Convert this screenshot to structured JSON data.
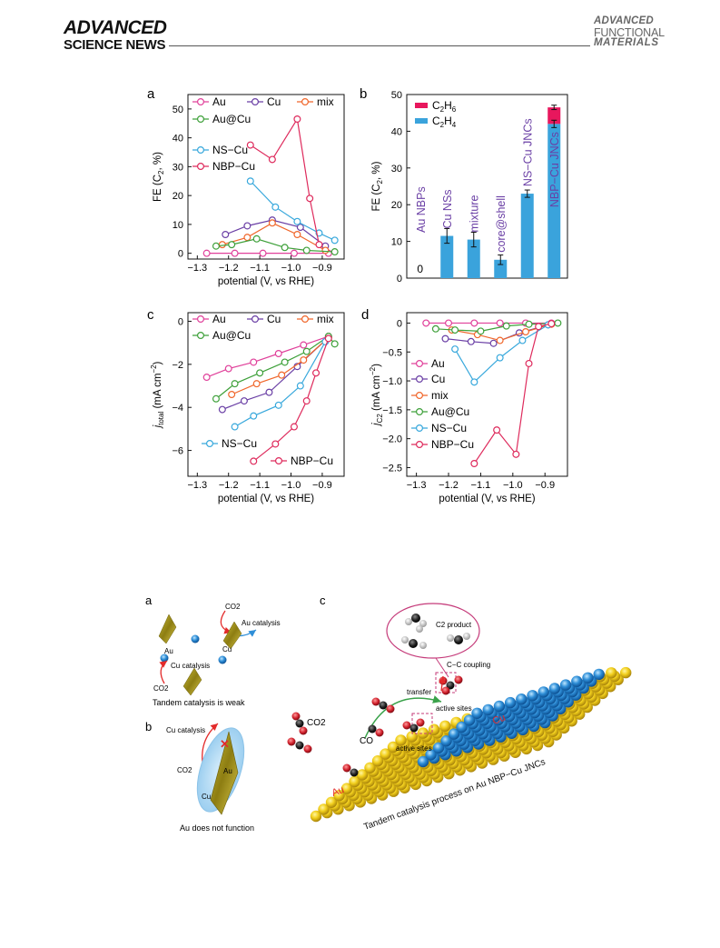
{
  "header": {
    "left_line1": "ADVANCED",
    "left_line2": "SCIENCE NEWS",
    "right_line1": "ADVANCED",
    "right_line2": "FUNCTIONAL",
    "right_line3": "MATERIALS"
  },
  "colors": {
    "Au": "#e0409a",
    "Cu": "#6a3fa5",
    "mix": "#f0662a",
    "Au@Cu": "#3ea03a",
    "NS-Cu": "#38a8dc",
    "NBP-Cu": "#de2a5c",
    "C2H6": "#e8175d",
    "C2H4": "#3aa3dc"
  },
  "figure1": {
    "panels": [
      "a",
      "b",
      "c",
      "d"
    ],
    "legend_a": [
      "Au",
      "Cu",
      "mix",
      "Au@Cu",
      "NS−Cu",
      "NBP−Cu"
    ],
    "legend_d": [
      "Au",
      "Cu",
      "mix",
      "Au@Cu",
      "NS−Cu",
      "NBP−Cu"
    ],
    "bar_labels": [
      "Au NBPs",
      "Cu NSs",
      "mixture",
      "core@shell",
      "NS−Cu JNCs",
      "NBP−Cu JNCs"
    ],
    "bar_zero": "0",
    "legend_b": [
      "C2H6",
      "C2H4"
    ]
  },
  "chart_data": [
    {
      "panel": "a",
      "type": "line",
      "xlabel": "potential (V, vs RHE)",
      "ylabel": "FE (C2, %)",
      "xlim": [
        -1.33,
        -0.83
      ],
      "ylim": [
        -2,
        55
      ],
      "xticks": [
        "-1.3",
        "-1.2",
        "-1.1",
        "-1.0",
        "-0.9"
      ],
      "yticks": [
        "0",
        "10",
        "20",
        "30",
        "40",
        "50"
      ],
      "series": [
        {
          "name": "Au",
          "x": [
            -1.27,
            -1.18,
            -1.09,
            -0.99,
            -0.88
          ],
          "y": [
            0,
            0,
            0,
            0,
            0
          ]
        },
        {
          "name": "Cu",
          "x": [
            -1.21,
            -1.14,
            -1.06,
            -0.97,
            -0.89
          ],
          "y": [
            6.5,
            9.5,
            11.5,
            9,
            2.5
          ]
        },
        {
          "name": "mix",
          "x": [
            -1.22,
            -1.14,
            -1.06,
            -0.98,
            -0.89
          ],
          "y": [
            3,
            5.5,
            10.5,
            6.5,
            1
          ]
        },
        {
          "name": "Au@Cu",
          "x": [
            -1.24,
            -1.19,
            -1.11,
            -1.02,
            -0.95,
            -0.86
          ],
          "y": [
            2.5,
            3,
            5,
            2,
            1,
            0.5
          ]
        },
        {
          "name": "NS−Cu",
          "x": [
            -1.13,
            -1.05,
            -0.98,
            -0.91,
            -0.86
          ],
          "y": [
            25,
            16,
            11,
            7,
            4.5
          ]
        },
        {
          "name": "NBP−Cu",
          "x": [
            -1.13,
            -1.06,
            -0.98,
            -0.94,
            -0.91
          ],
          "y": [
            37.5,
            32.5,
            46.5,
            19,
            3
          ]
        }
      ]
    },
    {
      "panel": "b",
      "type": "bar",
      "ylabel": "FE (C2, %)",
      "ylim": [
        0,
        50
      ],
      "yticks": [
        "0",
        "10",
        "20",
        "30",
        "40",
        "50"
      ],
      "categories": [
        "Au NBPs",
        "Cu NSs",
        "mixture",
        "core@shell",
        "NS−Cu JNCs",
        "NBP−Cu JNCs"
      ],
      "series": [
        {
          "name": "C2H4",
          "values": [
            0,
            11.5,
            10.5,
            5,
            23,
            42
          ]
        },
        {
          "name": "C2H6",
          "values": [
            0,
            0,
            0,
            0,
            0,
            4.5
          ]
        }
      ]
    },
    {
      "panel": "c",
      "type": "line",
      "xlabel": "potential (V, vs RHE)",
      "ylabel": "jtotal (mA cm-2)",
      "xlim": [
        -1.33,
        -0.83
      ],
      "ylim": [
        -7.2,
        0.4
      ],
      "xticks": [
        "-1.3",
        "-1.2",
        "-1.1",
        "-1.0",
        "-0.9"
      ],
      "yticks": [
        "0",
        "-2",
        "-4",
        "-6"
      ],
      "series": [
        {
          "name": "Au",
          "x": [
            -1.27,
            -1.2,
            -1.12,
            -1.04,
            -0.96,
            -0.88
          ],
          "y": [
            -2.6,
            -2.2,
            -1.9,
            -1.5,
            -1.1,
            -0.7
          ]
        },
        {
          "name": "Cu",
          "x": [
            -1.22,
            -1.15,
            -1.07,
            -0.98,
            -0.88
          ],
          "y": [
            -4.1,
            -3.7,
            -3.3,
            -2.1,
            -0.75
          ]
        },
        {
          "name": "mix",
          "x": [
            -1.19,
            -1.11,
            -1.03,
            -0.96,
            -0.88
          ],
          "y": [
            -3.4,
            -2.9,
            -2.5,
            -1.8,
            -0.75
          ]
        },
        {
          "name": "Au@Cu",
          "x": [
            -1.24,
            -1.18,
            -1.1,
            -1.02,
            -0.95,
            -0.88,
            -0.86
          ],
          "y": [
            -3.6,
            -2.9,
            -2.4,
            -1.9,
            -1.4,
            -0.7,
            -1.05
          ]
        },
        {
          "name": "NS−Cu",
          "x": [
            -1.18,
            -1.12,
            -1.04,
            -0.97,
            -0.89
          ],
          "y": [
            -4.9,
            -4.4,
            -3.9,
            -3,
            -0.95
          ]
        },
        {
          "name": "NBP−Cu",
          "x": [
            -1.12,
            -1.05,
            -0.99,
            -0.95,
            -0.92,
            -0.88
          ],
          "y": [
            -6.5,
            -5.7,
            -4.9,
            -3.7,
            -2.4,
            -0.8
          ]
        }
      ],
      "legend_labels": [
        "Au",
        "Cu",
        "mix",
        "Au@Cu",
        "NS−Cu",
        "NBP−Cu"
      ]
    },
    {
      "panel": "d",
      "type": "line",
      "xlabel": "potential (V, vs RHE)",
      "ylabel": "jC2 (mA cm-2)",
      "xlim": [
        -1.33,
        -0.83
      ],
      "ylim": [
        -2.65,
        0.18
      ],
      "xticks": [
        "-1.3",
        "-1.2",
        "-1.1",
        "-1.0",
        "-0.9"
      ],
      "yticks": [
        "0",
        "-0.5",
        "-1.0",
        "-1.5",
        "-2.0",
        "-2.5"
      ],
      "series": [
        {
          "name": "Au",
          "x": [
            -1.27,
            -1.2,
            -1.12,
            -1.04,
            -0.96,
            -0.88
          ],
          "y": [
            0,
            0,
            0,
            0,
            0,
            0
          ]
        },
        {
          "name": "Cu",
          "x": [
            -1.21,
            -1.13,
            -1.06,
            -0.98,
            -0.89
          ],
          "y": [
            -0.27,
            -0.32,
            -0.35,
            -0.17,
            -0.03
          ]
        },
        {
          "name": "mix",
          "x": [
            -1.19,
            -1.11,
            -1.04,
            -0.96,
            -0.88
          ],
          "y": [
            -0.12,
            -0.2,
            -0.3,
            -0.15,
            -0.02
          ]
        },
        {
          "name": "Au@Cu",
          "x": [
            -1.24,
            -1.18,
            -1.1,
            -1.02,
            -0.95,
            -0.86
          ],
          "y": [
            -0.1,
            -0.12,
            -0.14,
            -0.05,
            -0.02,
            0
          ]
        },
        {
          "name": "NS−Cu",
          "x": [
            -1.18,
            -1.12,
            -1.04,
            -0.97,
            -0.89
          ],
          "y": [
            -0.45,
            -1.02,
            -0.6,
            -0.3,
            -0.03
          ]
        },
        {
          "name": "NBP−Cu",
          "x": [
            -1.12,
            -1.05,
            -0.99,
            -0.95,
            -0.92,
            -0.88
          ],
          "y": [
            -2.43,
            -1.85,
            -2.27,
            -0.7,
            -0.06,
            -0.01
          ]
        }
      ]
    }
  ],
  "figure2": {
    "panel_a": {
      "label": "a",
      "co2_top": "CO2",
      "au_catalysis": "Au catalysis",
      "au": "Au",
      "cu": "Cu",
      "cu_catalysis": "Cu catalysis",
      "co2_bottom": "CO2",
      "caption": "Tandem catalysis is weak"
    },
    "panel_b": {
      "label": "b",
      "cu_catalysis": "Cu catalysis",
      "co2": "CO2",
      "au": "Au",
      "cu": "Cu",
      "caption": "Au does not function"
    },
    "panel_c": {
      "label": "c",
      "c2_product": "C2 product",
      "cc_coupling": "C−C coupling",
      "transfer": "transfer",
      "active_sites_1": "active sites",
      "active_sites_2": "active sites",
      "co2": "CO2",
      "co": "CO",
      "au": "Au",
      "cu": "Cu",
      "caption": "Tandem catalysis process on Au NBP−Cu JNCs"
    }
  }
}
